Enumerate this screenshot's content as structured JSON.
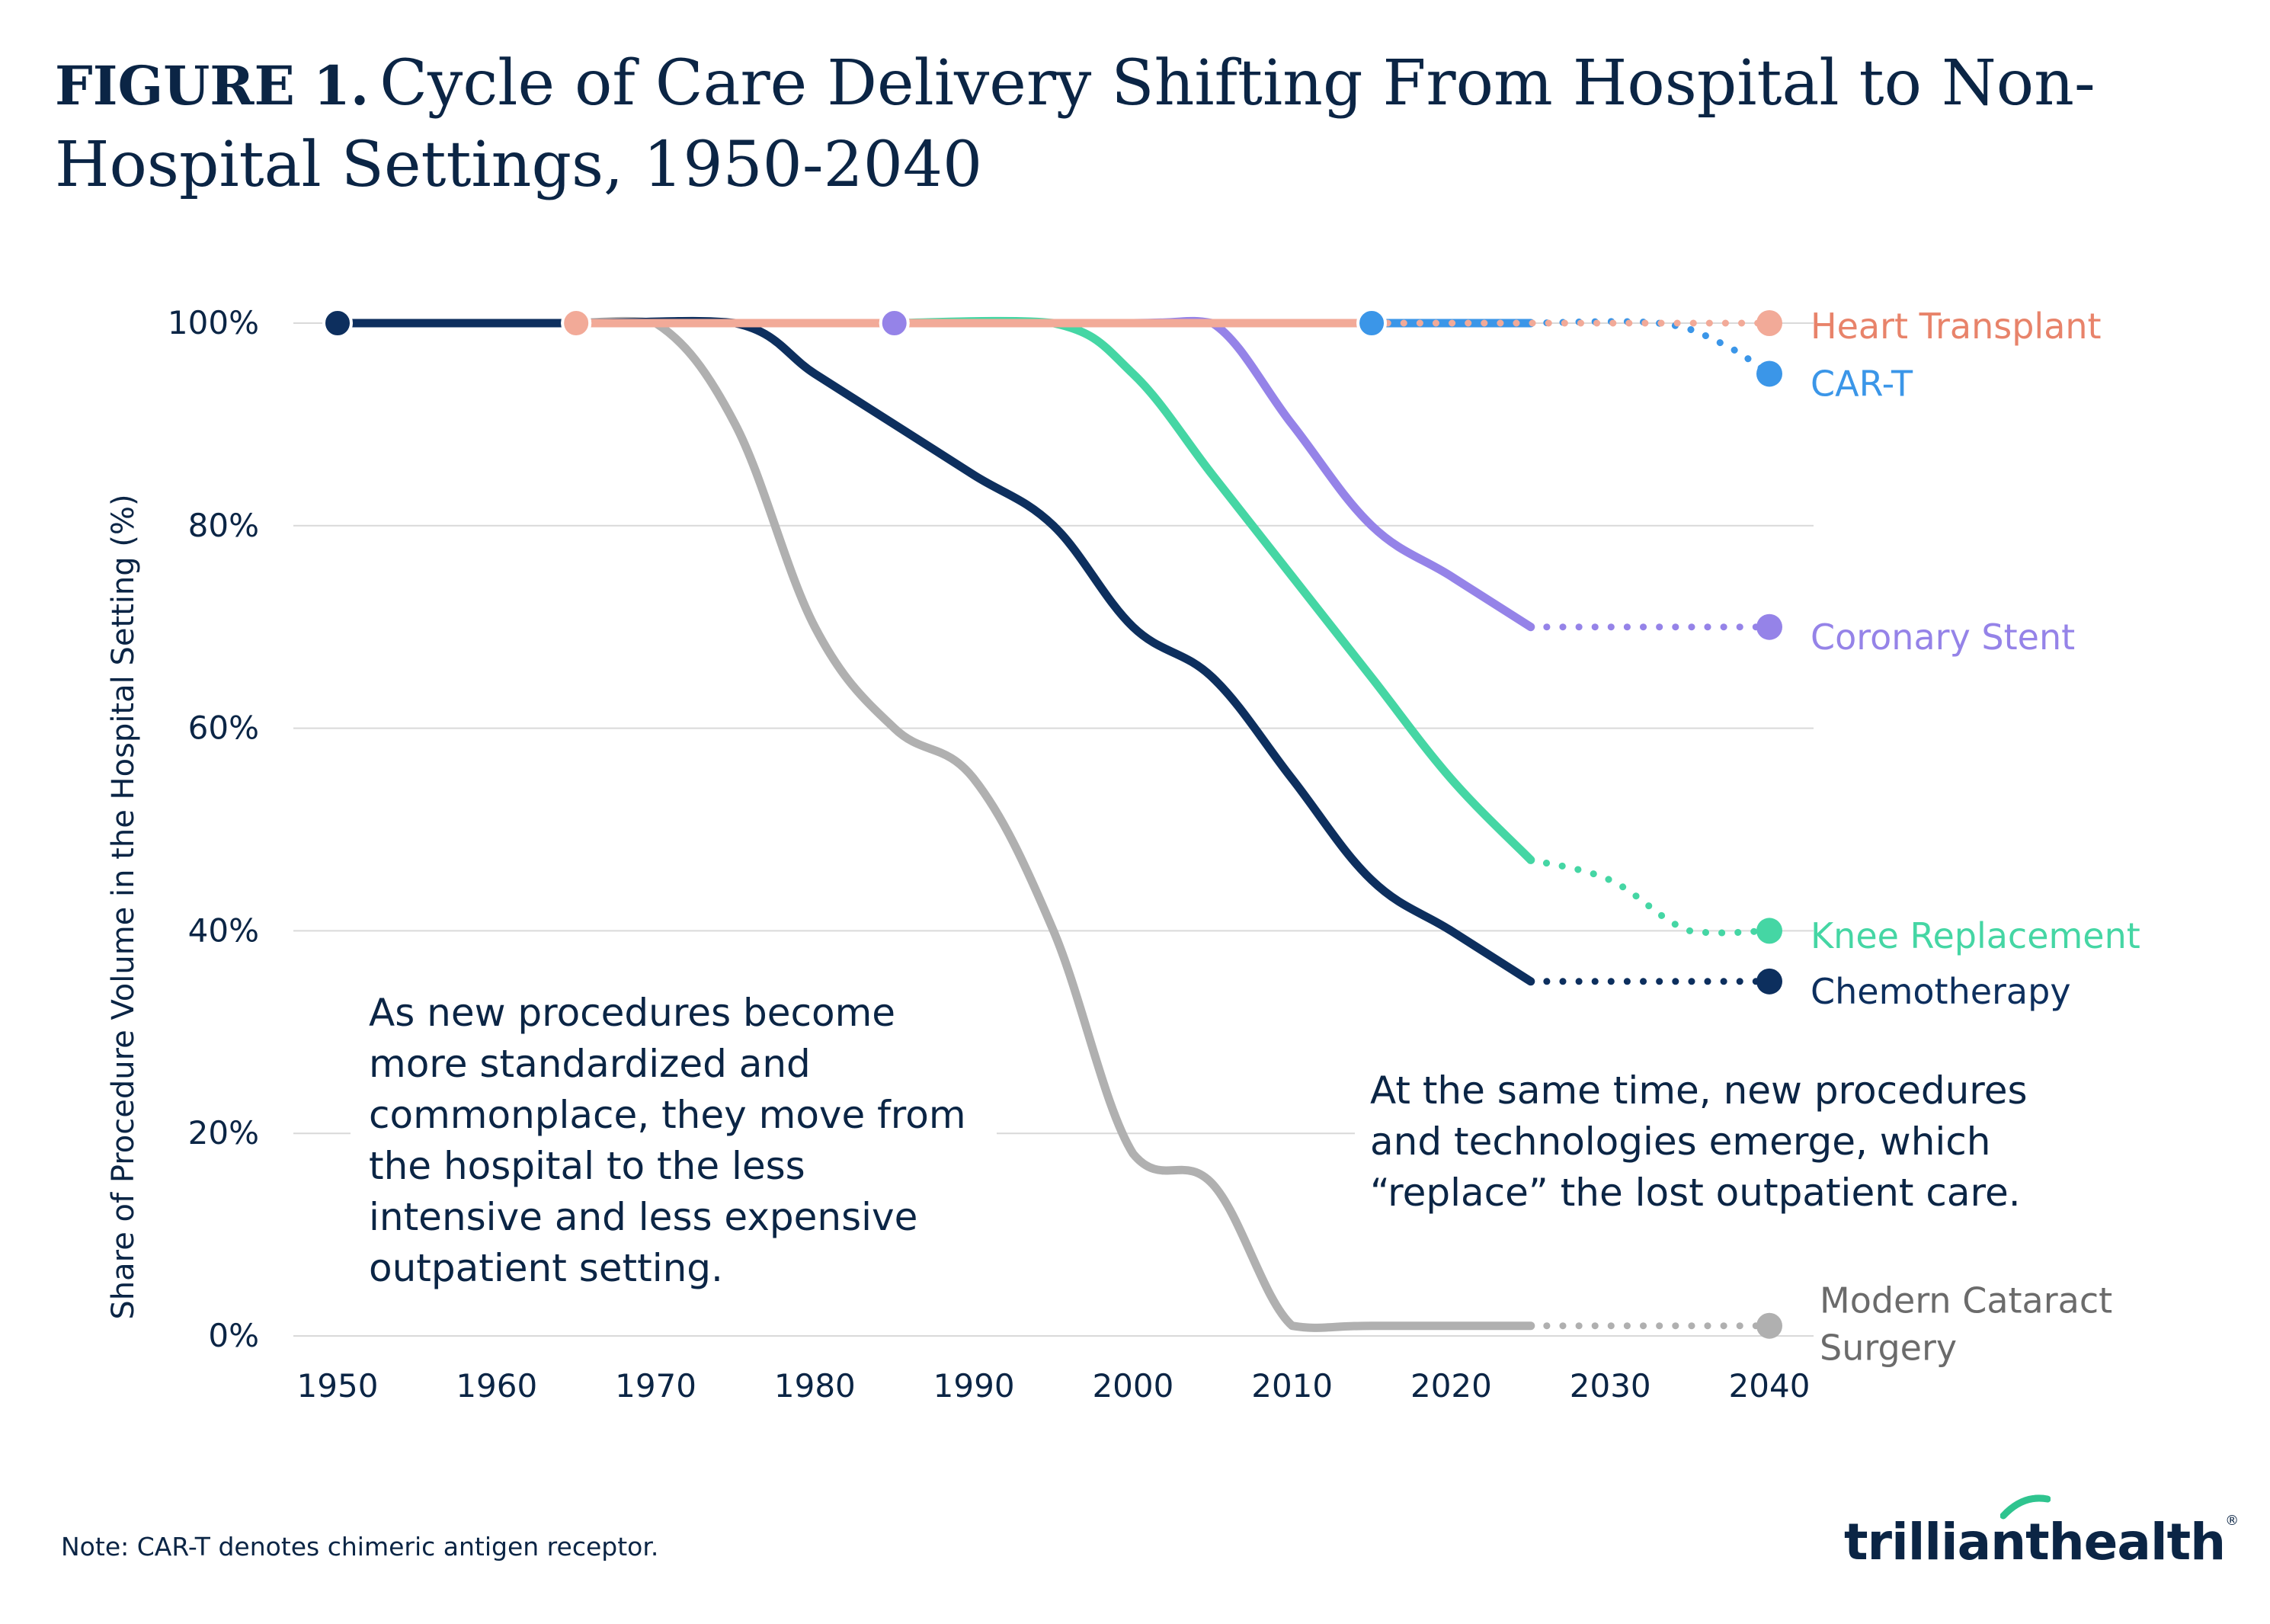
{
  "header": {
    "figure_label": "FIGURE 1.",
    "title": "Cycle of Care Delivery Shifting From Hospital to Non-Hospital Settings, 1950-2040"
  },
  "chart_data": {
    "type": "line",
    "ylabel": "Share of Procedure Volume in the Hospital Setting (%)",
    "xlabel": "",
    "x_ticks": [
      "1950",
      "1960",
      "1970",
      "1980",
      "1990",
      "2000",
      "2010",
      "2020",
      "2030",
      "2040"
    ],
    "y_ticks": [
      "0%",
      "20%",
      "40%",
      "60%",
      "80%",
      "100%"
    ],
    "xlim": [
      1950,
      2040
    ],
    "ylim": [
      0,
      100
    ],
    "grid": "horizontal",
    "legend": "direct labels at right end of lines",
    "series": [
      {
        "name": "Modern Cataract Surgery",
        "color": "#b0b0b0",
        "start_marker": 1965,
        "solid": [
          [
            1965,
            100
          ],
          [
            1970,
            100
          ],
          [
            1975,
            90
          ],
          [
            1980,
            70
          ],
          [
            1985,
            60
          ],
          [
            1990,
            55
          ],
          [
            1995,
            40
          ],
          [
            2000,
            18
          ],
          [
            2005,
            15
          ],
          [
            2010,
            1
          ],
          [
            2015,
            1
          ],
          [
            2025,
            1
          ]
        ],
        "projected": [
          [
            2025,
            1
          ],
          [
            2040,
            1
          ]
        ]
      },
      {
        "name": "Chemotherapy",
        "color": "#0d2f5e",
        "start_marker": 1950,
        "solid": [
          [
            1950,
            100
          ],
          [
            1965,
            100
          ],
          [
            1975,
            100
          ],
          [
            1980,
            95
          ],
          [
            1985,
            90
          ],
          [
            1990,
            85
          ],
          [
            1995,
            80
          ],
          [
            2000,
            70
          ],
          [
            2005,
            65
          ],
          [
            2010,
            55
          ],
          [
            2015,
            45
          ],
          [
            2020,
            40
          ],
          [
            2025,
            35
          ]
        ],
        "projected": [
          [
            2025,
            35
          ],
          [
            2040,
            35
          ]
        ]
      },
      {
        "name": "Knee Replacement",
        "color": "#45d6a4",
        "start_marker": 1985,
        "solid": [
          [
            1985,
            100
          ],
          [
            1995,
            100
          ],
          [
            2000,
            95
          ],
          [
            2005,
            85
          ],
          [
            2010,
            75
          ],
          [
            2015,
            65
          ],
          [
            2020,
            55
          ],
          [
            2025,
            47
          ]
        ],
        "projected": [
          [
            2025,
            47
          ],
          [
            2030,
            45
          ],
          [
            2035,
            40
          ],
          [
            2040,
            40
          ]
        ]
      },
      {
        "name": "Coronary Stent",
        "color": "#9583e8",
        "start_marker": 1985,
        "solid": [
          [
            1985,
            100
          ],
          [
            2000,
            100
          ],
          [
            2005,
            100
          ],
          [
            2010,
            90
          ],
          [
            2015,
            80
          ],
          [
            2020,
            75
          ],
          [
            2025,
            70
          ]
        ],
        "projected": [
          [
            2025,
            70
          ],
          [
            2040,
            70
          ]
        ]
      },
      {
        "name": "CAR-T",
        "color": "#3b96e8",
        "start_marker": 2015,
        "solid": [
          [
            2015,
            100
          ],
          [
            2025,
            100
          ]
        ],
        "projected": [
          [
            2025,
            100
          ],
          [
            2033,
            100
          ],
          [
            2037,
            98
          ],
          [
            2040,
            95
          ]
        ]
      },
      {
        "name": "Heart Transplant",
        "color": "#f2aa98",
        "label_color": "#e8836a",
        "start_marker": 1965,
        "solid": [
          [
            1965,
            100
          ],
          [
            2015,
            100
          ]
        ],
        "projected": [
          [
            2015,
            100
          ],
          [
            2040,
            100
          ]
        ]
      }
    ],
    "label_values": {
      "Heart Transplant": 99.7,
      "CAR-T": 94,
      "Coronary Stent": 69,
      "Knee Replacement": 39.5,
      "Chemotherapy": 34,
      "Modern Cataract Surgery": 3.5
    },
    "label_lines": {
      "Modern Cataract Surgery": [
        "Modern Cataract",
        "Surgery"
      ]
    },
    "annotations": {
      "left": "As new procedures become more standardized and commonplace, they move from the hospital to the less intensive and less expensive outpatient setting.",
      "right": "At the same time, new procedures and technologies emerge, which “replace” the lost outpatient care."
    }
  },
  "footer": {
    "note": "Note: CAR-T denotes chimeric antigen receptor.",
    "logo": "trilliant health",
    "logo_part1": "trilliant",
    "logo_part2": "health",
    "registered": "®"
  }
}
